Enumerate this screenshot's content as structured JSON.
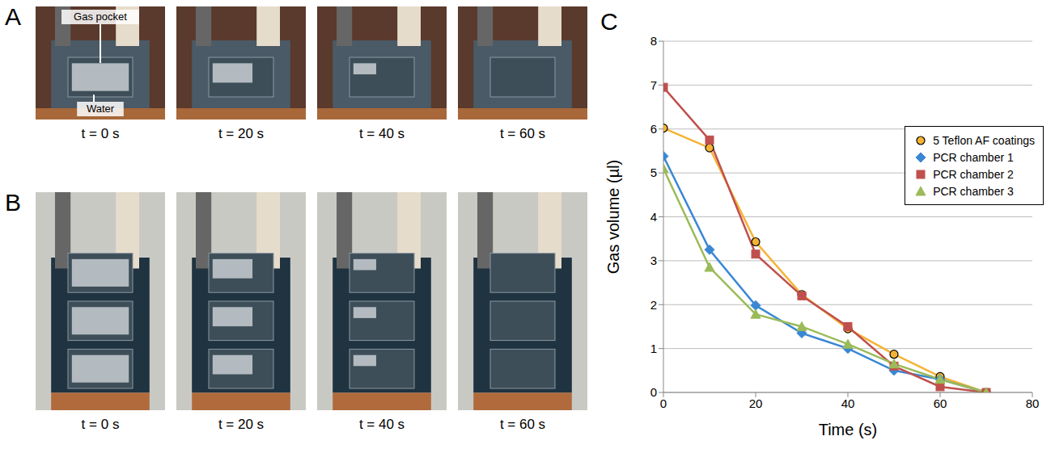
{
  "panels": [
    {
      "letter": "A",
      "annotations": [
        "Gas pocket",
        "Water"
      ],
      "captions": [
        "t = 0 s",
        "t = 20 s",
        "t = 40 s",
        "t = 60 s"
      ]
    },
    {
      "letter": "B",
      "captions": [
        "t = 0 s",
        "t = 20 s",
        "t = 40 s",
        "t = 60 s"
      ]
    },
    {
      "letter": "C"
    }
  ],
  "chart_data": {
    "type": "line",
    "x_label": "Time (s)",
    "y_label": "Gas volume (µl)",
    "x": [
      0,
      10,
      20,
      30,
      40,
      50,
      60,
      70
    ],
    "xlim": [
      0,
      80
    ],
    "xticks": [
      0,
      20,
      40,
      60,
      80
    ],
    "ylim": [
      0,
      8
    ],
    "yticks": [
      0,
      1,
      2,
      3,
      4,
      5,
      6,
      7,
      8
    ],
    "grid": true,
    "legend": "upper right",
    "series": [
      {
        "name": "5 Teflon AF coatings",
        "color": "#f5b335",
        "marker": "circle",
        "values": [
          6.02,
          5.57,
          3.43,
          2.23,
          1.45,
          0.87,
          0.36,
          0
        ]
      },
      {
        "name": "PCR chamber 1",
        "color": "#3a87d4",
        "marker": "diamond",
        "values": [
          5.38,
          3.25,
          1.98,
          1.35,
          1.0,
          0.5,
          0.3,
          0
        ]
      },
      {
        "name": "PCR chamber 2",
        "color": "#c0504d",
        "marker": "square",
        "values": [
          6.95,
          5.75,
          3.15,
          2.2,
          1.5,
          0.6,
          0.13,
          0
        ]
      },
      {
        "name": "PCR chamber 3",
        "color": "#9bbb59",
        "marker": "triangle",
        "values": [
          5.1,
          2.85,
          1.78,
          1.5,
          1.1,
          0.65,
          0.3,
          0
        ]
      }
    ]
  }
}
